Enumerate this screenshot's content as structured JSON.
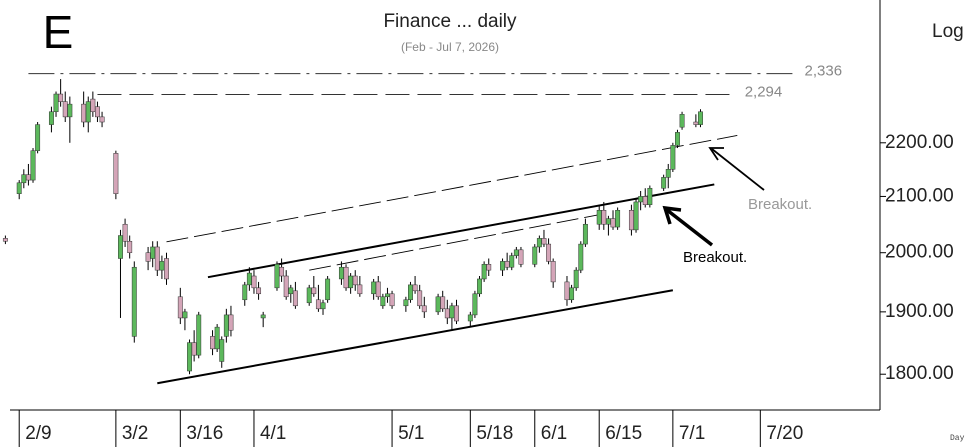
{
  "chart_data": {
    "type": "candlestick",
    "title": "Finance ... daily",
    "subtitle": "(Feb - Jul 7, 2026)",
    "panel_letter": "E",
    "scale_label": "Log",
    "x_axis_label": "Day",
    "log_scale": true,
    "up_color": "#5cb85c",
    "down_color": "#d4a5b8",
    "xlim": [
      "2/7",
      "8/15"
    ],
    "xticks": [
      "2/9",
      "3/2",
      "3/16",
      "4/1",
      "5/1",
      "5/18",
      "6/1",
      "6/15",
      "7/1",
      "7/20"
    ],
    "ylim": [
      1745,
      2490
    ],
    "yticks": [
      {
        "value": 1800,
        "label": "1800.00"
      },
      {
        "value": 1900,
        "label": "1900.00"
      },
      {
        "value": 2000,
        "label": "2000.00"
      },
      {
        "value": 2100,
        "label": "2100.00"
      },
      {
        "value": 2200,
        "label": "2200.00"
      }
    ],
    "levels": [
      {
        "value": 2336,
        "label": "2,336",
        "x": [
          "2/11",
          "7/27"
        ]
      },
      {
        "value": 2294,
        "label": "2,294",
        "x": [
          "2/26",
          "7/14"
        ]
      }
    ],
    "trendlines": [
      {
        "x": [
          "3/11",
          "7/1"
        ],
        "y": [
          1786,
          1936
        ],
        "style": "solid"
      },
      {
        "x": [
          "3/22",
          "7/10"
        ],
        "y": [
          1958,
          2122
        ],
        "style": "solid"
      },
      {
        "x": [
          "3/13",
          "7/15"
        ],
        "y": [
          2019,
          2214
        ],
        "style": "dashed"
      },
      {
        "x": [
          "4/13",
          "6/15"
        ],
        "y": [
          1970,
          2067
        ],
        "style": "dashed"
      }
    ],
    "annotations": [
      {
        "text": "Breakout.",
        "color": "#999999"
      },
      {
        "text": "Breakout.",
        "color": "#000000"
      }
    ],
    "x": [
      "2/6",
      "2/9",
      "2/10",
      "2/11",
      "2/12",
      "2/13",
      "2/16",
      "2/17",
      "2/18",
      "2/19",
      "2/20",
      "2/23",
      "2/24",
      "2/25",
      "2/26",
      "2/27",
      "3/2",
      "3/3",
      "3/4",
      "3/5",
      "3/6",
      "3/9",
      "3/10",
      "3/11",
      "3/12",
      "3/13",
      "3/16",
      "3/17",
      "3/18",
      "3/19",
      "3/20",
      "3/23",
      "3/24",
      "3/25",
      "3/26",
      "3/27",
      "3/30",
      "3/31",
      "4/1",
      "4/2",
      "4/3",
      "4/6",
      "4/7",
      "4/8",
      "4/9",
      "4/10",
      "4/13",
      "4/14",
      "4/15",
      "4/16",
      "4/17",
      "4/20",
      "4/21",
      "4/22",
      "4/23",
      "4/24",
      "4/27",
      "4/28",
      "4/29",
      "4/30",
      "5/1",
      "5/4",
      "5/5",
      "5/6",
      "5/7",
      "5/8",
      "5/11",
      "5/12",
      "5/13",
      "5/14",
      "5/15",
      "5/18",
      "5/19",
      "5/20",
      "5/21",
      "5/22",
      "5/25",
      "5/26",
      "5/27",
      "5/28",
      "5/29",
      "6/1",
      "6/2",
      "6/3",
      "6/4",
      "6/5",
      "6/8",
      "6/9",
      "6/10",
      "6/11",
      "6/12",
      "6/15",
      "6/16",
      "6/17",
      "6/18",
      "6/19",
      "6/22",
      "6/23",
      "6/24",
      "6/25",
      "6/26",
      "6/29",
      "6/30",
      "7/1",
      "7/2",
      "7/3",
      "7/6",
      "7/7"
    ],
    "ohlc": [
      [
        2025,
        2030,
        2015,
        2020
      ],
      [
        2105,
        2130,
        2095,
        2125
      ],
      [
        2125,
        2150,
        2115,
        2140
      ],
      [
        2140,
        2160,
        2120,
        2130
      ],
      [
        2130,
        2190,
        2125,
        2185
      ],
      [
        2185,
        2240,
        2180,
        2235
      ],
      [
        2235,
        2270,
        2220,
        2260
      ],
      [
        2260,
        2300,
        2250,
        2295
      ],
      [
        2295,
        2325,
        2270,
        2280
      ],
      [
        2280,
        2300,
        2240,
        2250
      ],
      [
        2250,
        2290,
        2200,
        2275
      ],
      [
        2275,
        2300,
        2230,
        2240
      ],
      [
        2240,
        2290,
        2220,
        2280
      ],
      [
        2285,
        2300,
        2250,
        2260
      ],
      [
        2270,
        2280,
        2240,
        2250
      ],
      [
        2250,
        2260,
        2230,
        2240
      ],
      [
        2180,
        2185,
        2095,
        2105
      ],
      [
        1990,
        2040,
        1890,
        2030
      ],
      [
        2050,
        2060,
        2010,
        2020
      ],
      [
        2020,
        2030,
        1990,
        2000
      ],
      [
        1860,
        1985,
        1850,
        1975
      ],
      [
        2000,
        2010,
        1970,
        1985
      ],
      [
        1990,
        2020,
        1975,
        2010
      ],
      [
        2010,
        2020,
        1960,
        1970
      ],
      [
        1970,
        1995,
        1955,
        1985
      ],
      [
        1990,
        2000,
        1945,
        1955
      ],
      [
        1925,
        1940,
        1880,
        1890
      ],
      [
        1890,
        1905,
        1870,
        1900
      ],
      [
        1805,
        1855,
        1800,
        1850
      ],
      [
        1850,
        1870,
        1820,
        1830
      ],
      [
        1830,
        1900,
        1825,
        1895
      ],
      [
        1860,
        1870,
        1830,
        1840
      ],
      [
        1840,
        1880,
        1835,
        1875
      ],
      [
        1820,
        1860,
        1810,
        1855
      ],
      [
        1860,
        1905,
        1850,
        1895
      ],
      [
        1895,
        1910,
        1860,
        1870
      ],
      [
        1920,
        1950,
        1910,
        1945
      ],
      [
        1945,
        1975,
        1935,
        1965
      ],
      [
        1960,
        1970,
        1930,
        1940
      ],
      [
        1940,
        1950,
        1920,
        1930
      ],
      [
        1890,
        1900,
        1875,
        1895
      ],
      [
        1940,
        1985,
        1935,
        1980
      ],
      [
        1975,
        1990,
        1950,
        1960
      ],
      [
        1960,
        1970,
        1920,
        1925
      ],
      [
        1930,
        1945,
        1915,
        1940
      ],
      [
        1935,
        1950,
        1905,
        1910
      ],
      [
        1915,
        1945,
        1910,
        1940
      ],
      [
        1940,
        1960,
        1925,
        1930
      ],
      [
        1920,
        1945,
        1900,
        1905
      ],
      [
        1905,
        1920,
        1895,
        1915
      ],
      [
        1920,
        1960,
        1915,
        1955
      ],
      [
        1955,
        1985,
        1945,
        1975
      ],
      [
        1975,
        1980,
        1935,
        1940
      ],
      [
        1940,
        1965,
        1930,
        1960
      ],
      [
        1960,
        1970,
        1935,
        1945
      ],
      [
        1945,
        1960,
        1925,
        1930
      ],
      [
        1930,
        1955,
        1920,
        1950
      ],
      [
        1950,
        1960,
        1920,
        1925
      ],
      [
        1910,
        1930,
        1905,
        1925
      ],
      [
        1925,
        1940,
        1915,
        1930
      ],
      [
        1930,
        1935,
        1905,
        1910
      ],
      [
        1910,
        1925,
        1900,
        1920
      ],
      [
        1920,
        1950,
        1915,
        1945
      ],
      [
        1945,
        1960,
        1930,
        1935
      ],
      [
        1935,
        1945,
        1905,
        1910
      ],
      [
        1910,
        1925,
        1890,
        1900
      ],
      [
        1900,
        1930,
        1895,
        1925
      ],
      [
        1925,
        1935,
        1900,
        1905
      ],
      [
        1905,
        1920,
        1880,
        1890
      ],
      [
        1890,
        1915,
        1870,
        1910
      ],
      [
        1910,
        1920,
        1880,
        1885
      ],
      [
        1885,
        1900,
        1875,
        1895
      ],
      [
        1895,
        1935,
        1890,
        1930
      ],
      [
        1930,
        1960,
        1925,
        1955
      ],
      [
        1955,
        1985,
        1950,
        1980
      ],
      [
        1980,
        1990,
        1960,
        1970
      ],
      [
        1970,
        1990,
        1960,
        1985
      ],
      [
        1985,
        2000,
        1970,
        1975
      ],
      [
        1975,
        2000,
        1970,
        1995
      ],
      [
        1995,
        2010,
        1990,
        2005
      ],
      [
        2005,
        2010,
        1975,
        1980
      ],
      [
        1980,
        2015,
        1975,
        2010
      ],
      [
        2010,
        2030,
        2000,
        2025
      ],
      [
        2025,
        2040,
        2010,
        2015
      ],
      [
        2015,
        2025,
        1980,
        1985
      ],
      [
        1985,
        1990,
        1940,
        1950
      ],
      [
        1950,
        1960,
        1910,
        1920
      ],
      [
        1920,
        1945,
        1915,
        1940
      ],
      [
        1940,
        1975,
        1935,
        1970
      ],
      [
        1970,
        2020,
        1965,
        2015
      ],
      [
        2015,
        2060,
        2010,
        2050
      ],
      [
        2050,
        2085,
        2040,
        2075
      ],
      [
        2075,
        2090,
        2040,
        2050
      ],
      [
        2050,
        2065,
        2030,
        2060
      ],
      [
        2060,
        2075,
        2040,
        2045
      ],
      [
        2045,
        2080,
        2040,
        2075
      ],
      [
        2075,
        2085,
        2030,
        2040
      ],
      [
        2040,
        2095,
        2035,
        2090
      ],
      [
        2090,
        2110,
        2075,
        2100
      ],
      [
        2100,
        2115,
        2080,
        2085
      ],
      [
        2085,
        2120,
        2080,
        2115
      ],
      [
        2115,
        2140,
        2110,
        2135
      ],
      [
        2135,
        2160,
        2115,
        2150
      ],
      [
        2150,
        2200,
        2145,
        2195
      ],
      [
        2195,
        2225,
        2190,
        2220
      ],
      [
        2230,
        2260,
        2225,
        2255
      ],
      [
        2240,
        2255,
        2230,
        2235
      ],
      [
        2235,
        2265,
        2230,
        2260
      ]
    ]
  }
}
